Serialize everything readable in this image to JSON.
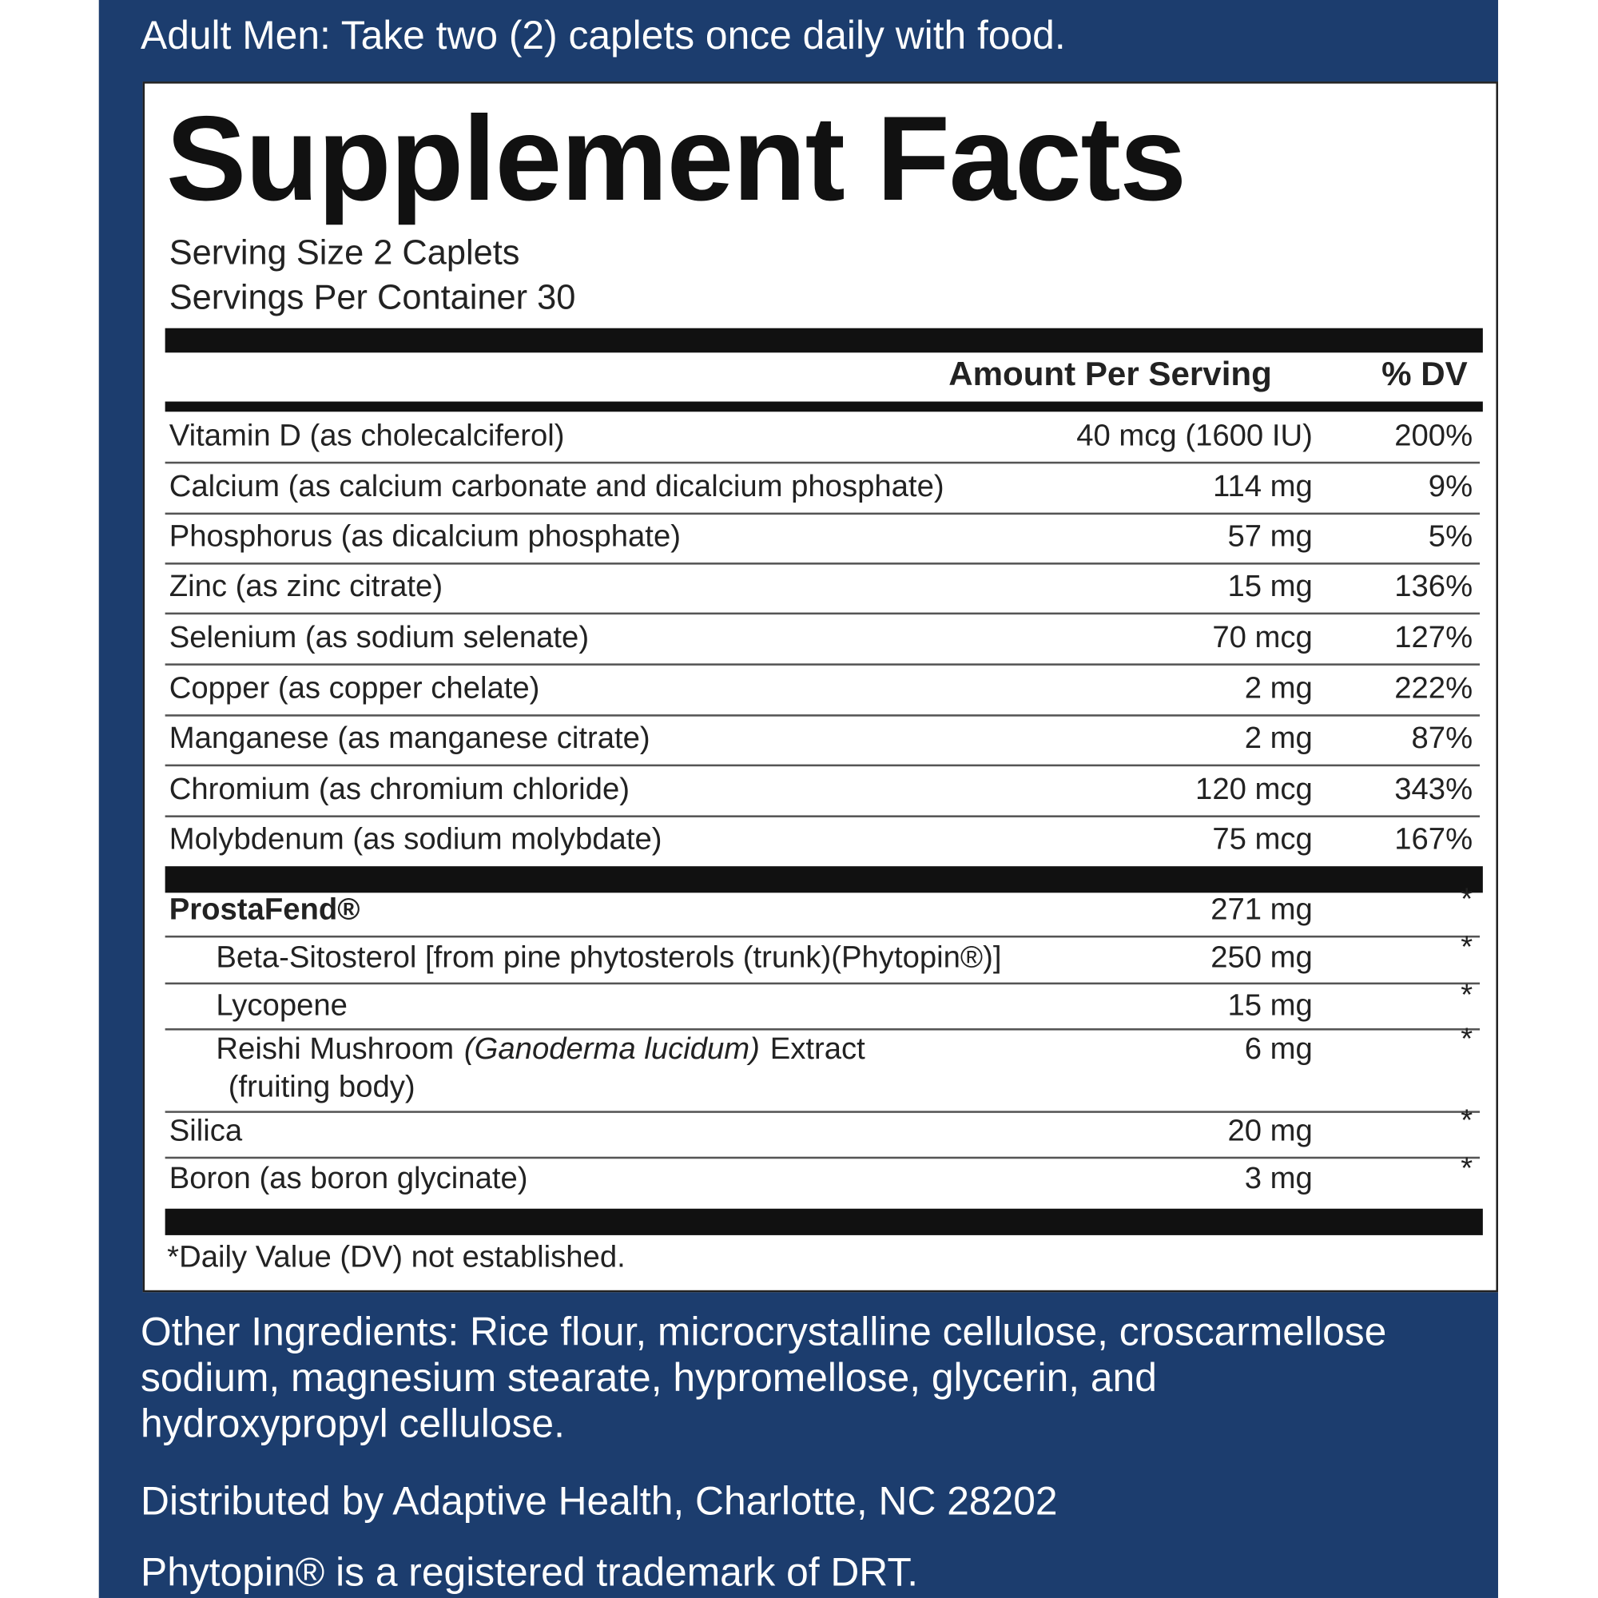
{
  "instructions": "Adult Men: Take two (2) caplets once daily with food.",
  "title": "Supplement Facts",
  "serving_size": "Serving Size 2 Caplets",
  "servings_per_container": "Servings Per Container 30",
  "header": {
    "amount": "Amount Per Serving",
    "dv": "% DV"
  },
  "rows": [
    {
      "name": "Vitamin D (as cholecalciferol)",
      "amount": "40 mcg (1600 IU)",
      "dv": "200%"
    },
    {
      "name": "Calcium (as calcium carbonate and dicalcium phosphate)",
      "amount": "114 mg",
      "dv": "9%"
    },
    {
      "name": "Phosphorus (as dicalcium phosphate)",
      "amount": "57 mg",
      "dv": "5%"
    },
    {
      "name": "Zinc (as zinc citrate)",
      "amount": "15 mg",
      "dv": "136%"
    },
    {
      "name": "Selenium (as sodium selenate)",
      "amount": "70 mcg",
      "dv": "127%"
    },
    {
      "name": "Copper (as copper chelate)",
      "amount": "2 mg",
      "dv": "222%"
    },
    {
      "name": "Manganese (as manganese citrate)",
      "amount": "2 mg",
      "dv": "87%"
    },
    {
      "name": "Chromium (as chromium chloride)",
      "amount": "120 mcg",
      "dv": "343%"
    },
    {
      "name": "Molybdenum (as sodium molybdate)",
      "amount": "75 mcg",
      "dv": "167%"
    }
  ],
  "blend": {
    "name": "ProstaFend®",
    "amount": "271 mg",
    "dv": "*",
    "items": [
      {
        "name": "Beta-Sitosterol [from pine phytosterols (trunk)(Phytopin®)]",
        "amount": "250 mg",
        "dv": "*"
      },
      {
        "name": "Lycopene",
        "amount": "15 mg",
        "dv": "*"
      },
      {
        "name": "Reishi Mushroom",
        "latin": "(Ganoderma lucidum)",
        "name_end": "Extract",
        "note": "(fruiting body)",
        "amount": "6 mg",
        "dv": "*"
      }
    ]
  },
  "other_rows": [
    {
      "name": "Silica",
      "amount": "20 mg",
      "dv": "*"
    },
    {
      "name": "Boron (as boron glycinate)",
      "amount": "3 mg",
      "dv": "*"
    }
  ],
  "footnote": "*Daily Value (DV) not established.",
  "other_ingredients": "Other Ingredients: Rice flour, microcrystalline cellulose, croscarmellose sodium, magnesium stearate, hypromellose, glycerin, and hydroxypropyl cellulose.",
  "distributed": "Distributed by Adaptive Health, Charlotte, NC 28202",
  "trademark": "Phytopin® is a registered trademark of DRT."
}
